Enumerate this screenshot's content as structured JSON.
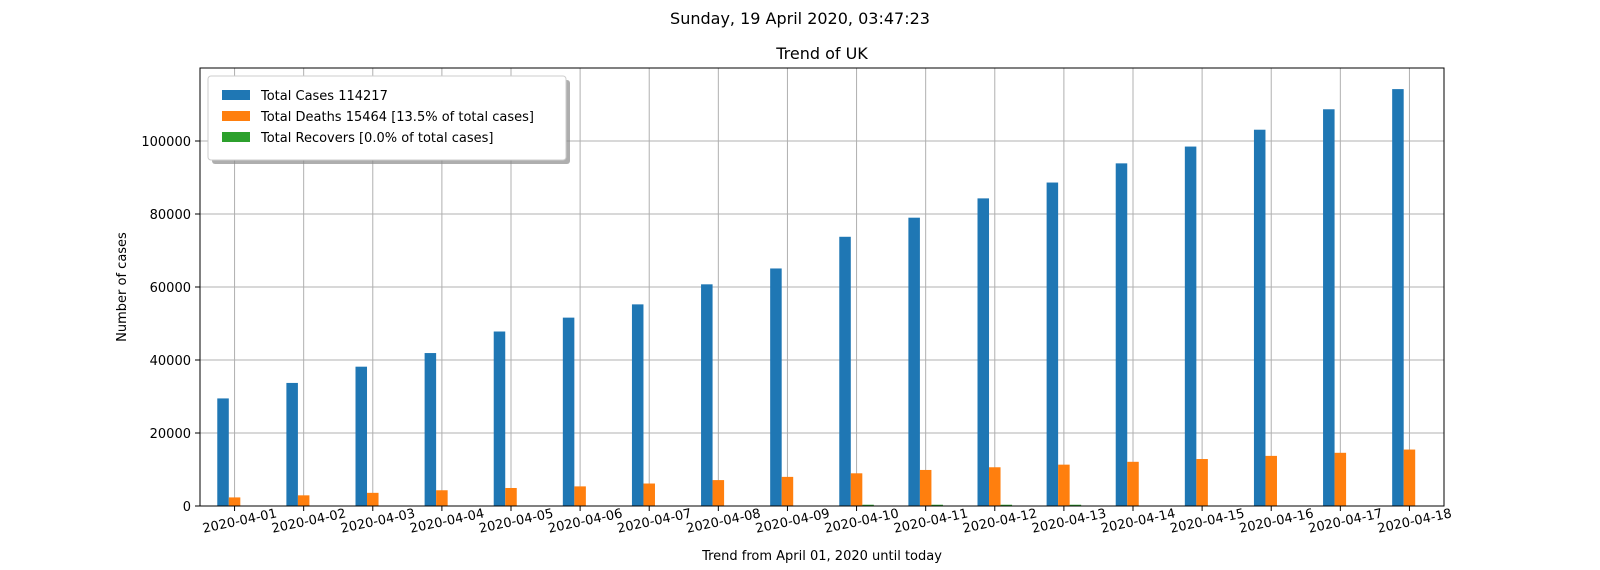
{
  "suptitle": "Sunday, 19 April 2020, 03:47:23",
  "chart_data": {
    "type": "bar",
    "title": "Trend of UK",
    "xlabel": "Trend from April 01, 2020 until today",
    "ylabel": "Number of cases",
    "ylim": [
      0,
      120000
    ],
    "yticks": [
      0,
      20000,
      40000,
      60000,
      80000,
      100000
    ],
    "grid": true,
    "legend_position": "top-left",
    "categories": [
      "2020-04-01",
      "2020-04-02",
      "2020-04-03",
      "2020-04-04",
      "2020-04-05",
      "2020-04-06",
      "2020-04-07",
      "2020-04-08",
      "2020-04-09",
      "2020-04-10",
      "2020-04-11",
      "2020-04-12",
      "2020-04-13",
      "2020-04-14",
      "2020-04-15",
      "2020-04-16",
      "2020-04-17",
      "2020-04-18"
    ],
    "series": [
      {
        "name": "Total Cases 114217",
        "color": "#1f77b4",
        "values": [
          29474,
          33718,
          38168,
          41903,
          47806,
          51608,
          55242,
          60733,
          65077,
          73758,
          78991,
          84279,
          88621,
          93873,
          98476,
          103093,
          108692,
          114217
        ]
      },
      {
        "name": "Total Deaths 15464 [13.5% of total cases]",
        "color": "#ff7f0e",
        "values": [
          2352,
          2921,
          3605,
          4313,
          4934,
          5373,
          6159,
          7097,
          7978,
          8958,
          9875,
          10612,
          11329,
          12107,
          12868,
          13729,
          14576,
          15464
        ]
      },
      {
        "name": "Total Recovers [0.0% of total cases]",
        "color": "#2ca02c",
        "values": [
          135,
          135,
          135,
          135,
          135,
          135,
          135,
          135,
          135,
          344,
          344,
          344,
          344,
          0,
          0,
          0,
          0,
          0
        ]
      }
    ]
  }
}
